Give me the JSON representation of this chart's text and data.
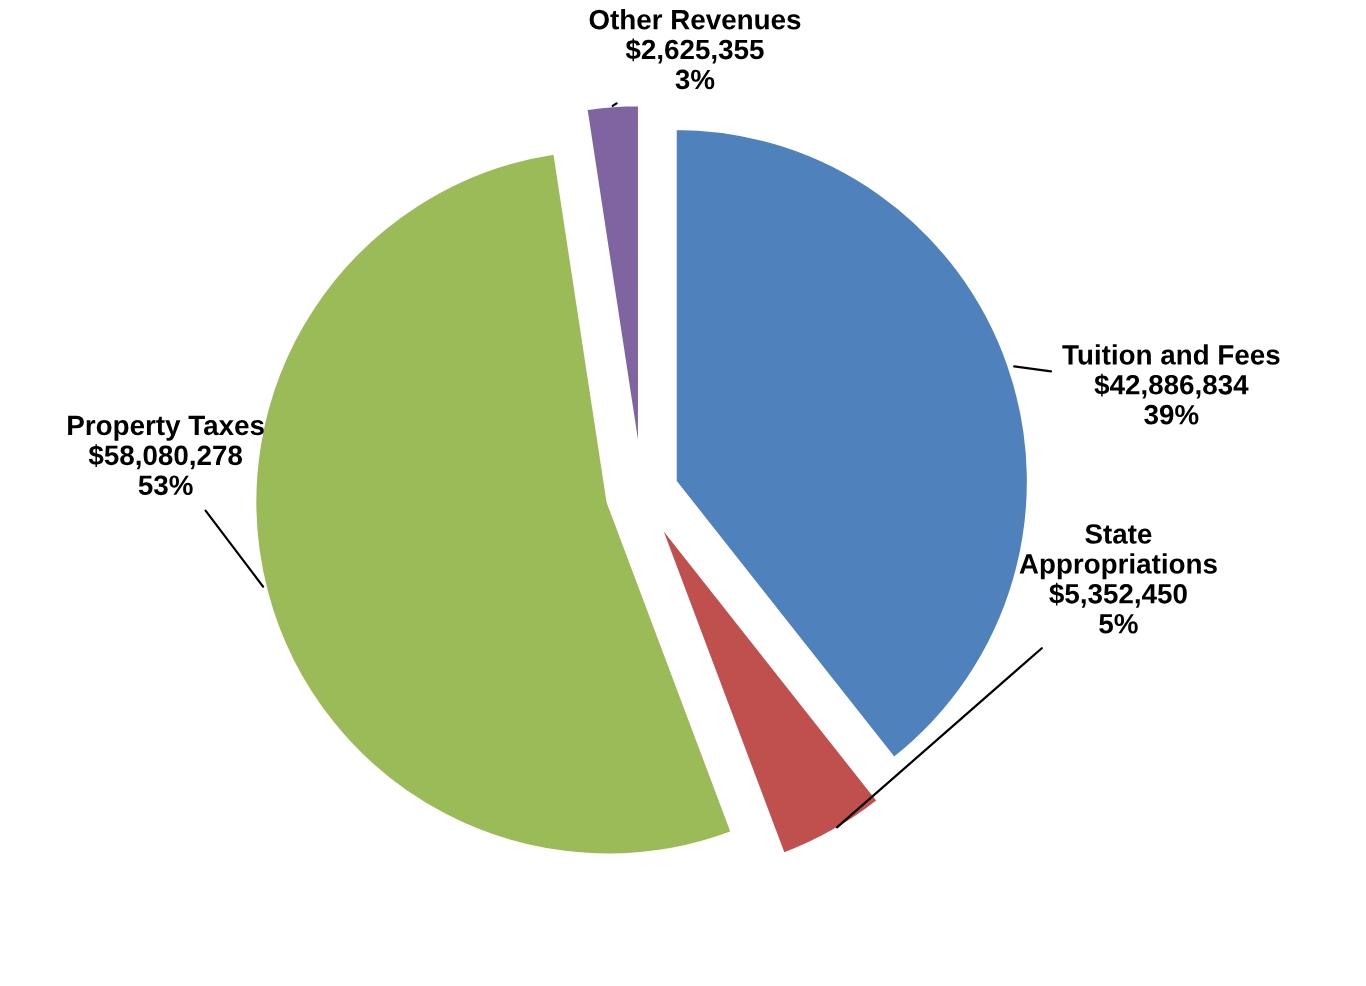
{
  "chart_data": {
    "type": "pie",
    "categories": [
      "Tuition and Fees",
      "State\nAppropriations",
      "Property Taxes",
      "Other Revenues"
    ],
    "values": [
      42886834,
      5352450,
      58080278,
      2625355
    ],
    "value_labels": [
      "$42,886,834\n39%",
      "$5,352,450\n5%",
      "$58,080,278\n53%",
      "$2,625,355\n3%"
    ],
    "colors": [
      "#4f81bd",
      "#c0504d",
      "#9bbb59",
      "#8064a2"
    ],
    "legend": false
  }
}
